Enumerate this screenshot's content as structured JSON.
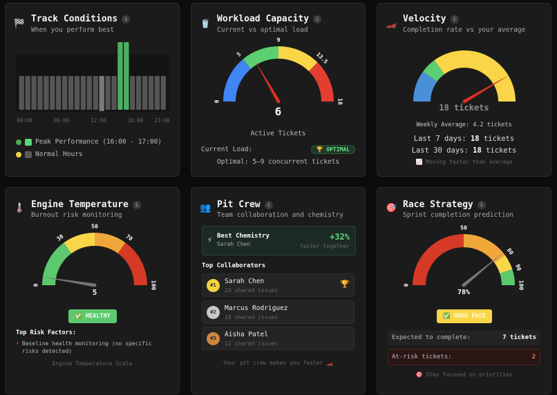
{
  "track": {
    "icon": "checkered-flag-icon",
    "title": "Track Conditions",
    "subtitle": "When you perform best",
    "chart_data": {
      "type": "bar",
      "categories": [
        "00",
        "01",
        "02",
        "03",
        "04",
        "05",
        "06",
        "07",
        "08",
        "09",
        "10",
        "11",
        "12",
        "13",
        "14",
        "15",
        "16",
        "17",
        "18",
        "19",
        "20",
        "21",
        "22",
        "23"
      ],
      "values": [
        1,
        1,
        1,
        1,
        1,
        1,
        1,
        1,
        1,
        1,
        1,
        1,
        1,
        1,
        1,
        1,
        2,
        2,
        1,
        1,
        1,
        1,
        1,
        1
      ],
      "highlight_index": 13,
      "peak_indices": [
        16,
        17
      ],
      "tick_labels": [
        "00:00",
        "06:00",
        "12:00",
        "18:00",
        "23:00"
      ],
      "colors": {
        "normal": "#555555",
        "current": "#7a7a7a",
        "peak": "#4caf63"
      }
    },
    "legend": [
      {
        "label": "Peak Performance (16:00 - 17:00)",
        "dot": "#4caf50",
        "swatch": "#5cd67a"
      },
      {
        "label": "Normal Hours",
        "dot": "#f5d142",
        "swatch": "#5a5a5a"
      }
    ]
  },
  "workload": {
    "icon": "fuel-can-icon",
    "title": "Workload Capacity",
    "subtitle": "Current vs optimal load",
    "gauge": {
      "min": 0,
      "max": 18,
      "value": 6,
      "needle_color": "#d93025",
      "segments": [
        {
          "from": 0,
          "to": 5,
          "color": "#4285f4"
        },
        {
          "from": 5,
          "to": 9,
          "color": "#5ccf72"
        },
        {
          "from": 9,
          "to": 13.5,
          "color": "#f9d648"
        },
        {
          "from": 13.5,
          "to": 18,
          "color": "#e53e30"
        }
      ],
      "labels": [
        "0",
        "5",
        "9",
        "13.5",
        "18"
      ],
      "label_values": [
        0,
        5,
        9,
        13.5,
        18
      ]
    },
    "value_text": "6",
    "caption": "Active Tickets",
    "current_load_label": "Current Load:",
    "badge": "🏆 OPTIMAL",
    "optimal_text": "Optimal: 5–9 concurrent tickets"
  },
  "velocity": {
    "icon": "race-car-icon",
    "title": "Velocity",
    "subtitle": "Completion rate vs your average",
    "gauge": {
      "min": 0,
      "max": 1,
      "value": 0.83,
      "needle_color": "#d93025",
      "segments": [
        {
          "from": 0,
          "to": 0.2,
          "color": "#4a90d9"
        },
        {
          "from": 0.2,
          "to": 0.3,
          "color": "#5ccf72"
        },
        {
          "from": 0.3,
          "to": 1,
          "color": "#f9d648"
        }
      ]
    },
    "value_text": "18 tickets",
    "weekly_average": "Weekly Average: 4.2 tickets",
    "last7_label": "Last 7 days:",
    "last7_value": "18",
    "last7_unit": "tickets",
    "last30_label": "Last 30 days:",
    "last30_value": "18",
    "last30_unit": "tickets",
    "trend": "📈 Moving faster than average"
  },
  "engine": {
    "icon": "thermometer-icon",
    "title": "Engine Temperature",
    "subtitle": "Burnout risk monitoring",
    "gauge": {
      "min": 0,
      "max": 100,
      "value": 5,
      "needle_color": "#777777",
      "segments": [
        {
          "from": 0,
          "to": 30,
          "color": "#5cc96e"
        },
        {
          "from": 30,
          "to": 50,
          "color": "#f9d648"
        },
        {
          "from": 50,
          "to": 70,
          "color": "#f0a73a"
        },
        {
          "from": 70,
          "to": 100,
          "color": "#d63a26"
        }
      ],
      "labels": [
        "0",
        "30",
        "50",
        "70",
        "100"
      ],
      "label_values": [
        0,
        30,
        50,
        70,
        100
      ]
    },
    "value_text": "5",
    "badge": "✅ HEALTHY",
    "risk_title": "Top Risk Factors:",
    "risks": [
      "Baseline health monitoring (no specific risks detected)"
    ],
    "scale_caption": "Engine Temperature Scale"
  },
  "pitcrew": {
    "icon": "people-icon",
    "title": "Pit Crew",
    "subtitle": "Team collaboration and chemistry",
    "best": {
      "icon": "lightning-icon",
      "title": "Best Chemistry",
      "name": "Sarah Chen",
      "value": "+32%",
      "caption": "faster together"
    },
    "collab_title": "Top Collaborators",
    "collaborators": [
      {
        "rank": "#1",
        "name": "Sarah Chen",
        "shared": "24 shared issues",
        "color": "#f5d142"
      },
      {
        "rank": "#2",
        "name": "Marcus Rodriguez",
        "shared": "18 shared issues",
        "color": "#c8c8c8"
      },
      {
        "rank": "#3",
        "name": "Aisha Patel",
        "shared": "12 shared issues",
        "color": "#cd853f"
      }
    ],
    "footer": "Your pit crew makes you faster 🏎️"
  },
  "race": {
    "icon": "target-icon",
    "title": "Race Strategy",
    "subtitle": "Sprint completion prediction",
    "gauge": {
      "min": 0,
      "max": 100,
      "value": 78,
      "needle_color": "#777777",
      "segments": [
        {
          "from": 0,
          "to": 50,
          "color": "#d63a26"
        },
        {
          "from": 50,
          "to": 80,
          "color": "#f0a73a"
        },
        {
          "from": 80,
          "to": 90,
          "color": "#f9d648"
        },
        {
          "from": 90,
          "to": 100,
          "color": "#5cc96e"
        }
      ],
      "labels": [
        "0",
        "50",
        "80",
        "90",
        "100"
      ],
      "label_values": [
        0,
        50,
        80,
        90,
        100
      ]
    },
    "value_text": "78%",
    "badge": "✅ GOOD PACE",
    "expected_label": "Expected to complete:",
    "expected_value": "7 tickets",
    "risk_label": "At-risk tickets:",
    "risk_value": "2",
    "footer": "🎯 Stay focused on priorities"
  }
}
